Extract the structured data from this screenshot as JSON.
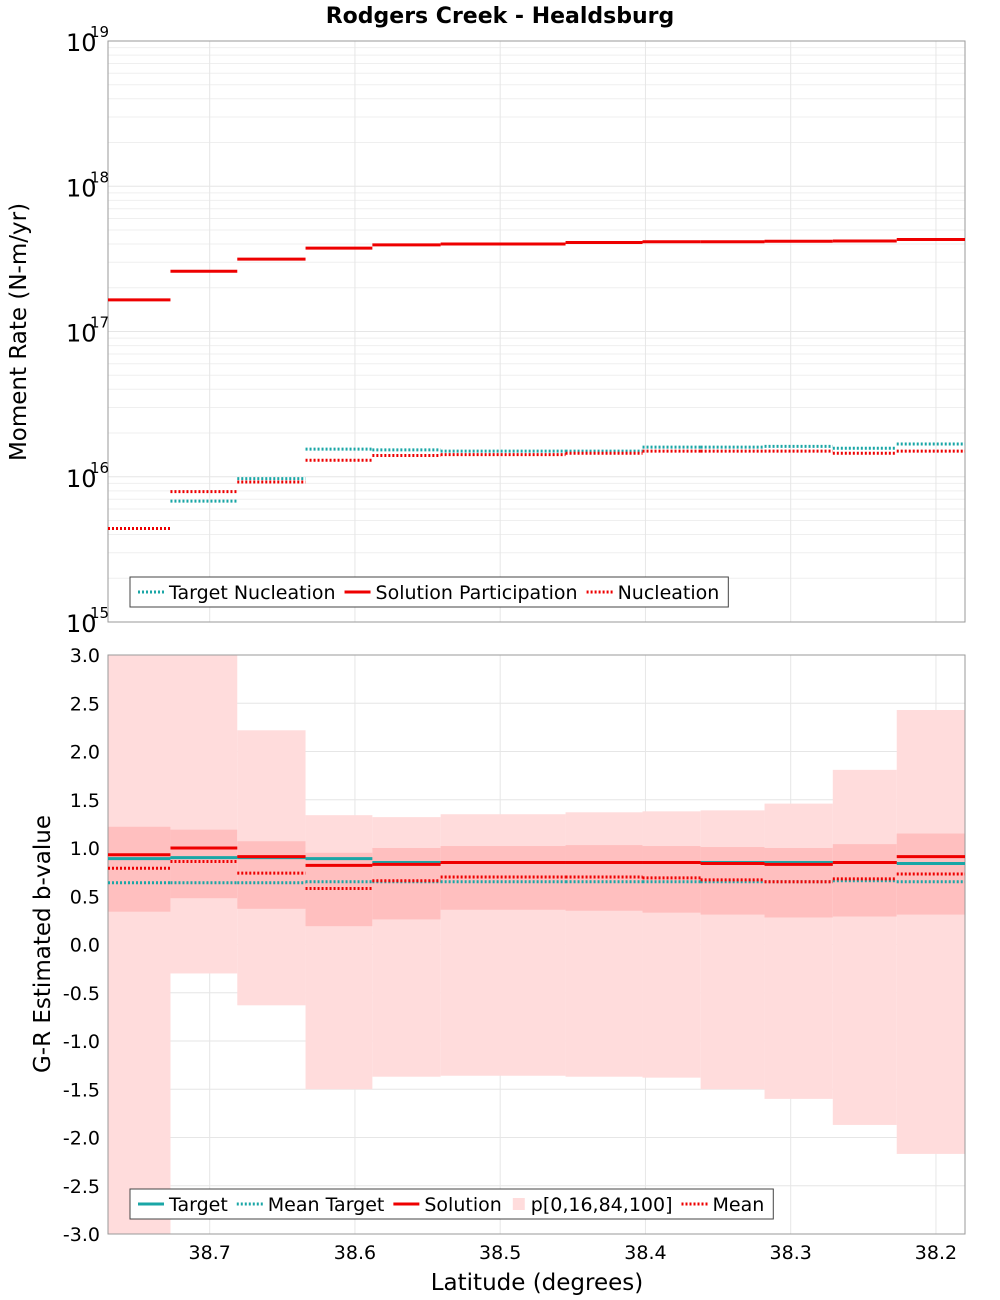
{
  "title": "Rodgers Creek - Healdsburg",
  "colors": {
    "target": "#1aa6a6",
    "solution": "#ee0000",
    "band_outer": "#ffdcdc",
    "band_inner": "#ffbfbf",
    "grid": "#e6e6e6",
    "axis": "#9a9a9a"
  },
  "chart_data": [
    {
      "type": "line",
      "panel": "top",
      "xlabel": "",
      "ylabel": "Moment Rate (N-m/yr)",
      "yscale": "log",
      "ylim": [
        1000000000000000.0,
        1e+19
      ],
      "xlim": [
        38.77,
        38.18
      ],
      "x_reversed": true,
      "grid": true,
      "legend_position": "bottom-left",
      "y_tick_labels": [
        {
          "base": "10",
          "exp": "15"
        },
        {
          "base": "10",
          "exp": "16"
        },
        {
          "base": "10",
          "exp": "17"
        },
        {
          "base": "10",
          "exp": "18"
        },
        {
          "base": "10",
          "exp": "19"
        }
      ],
      "x_edges": [
        38.77,
        38.727,
        38.681,
        38.634,
        38.588,
        38.541,
        38.455,
        38.402,
        38.362,
        38.318,
        38.271,
        38.227,
        38.18
      ],
      "series": [
        {
          "name": "Target Nucleation",
          "style": "dotted",
          "color": "#1aa6a6",
          "values": [
            4400000000000000.0,
            6800000000000000.0,
            9700000000000000.0,
            1.55e+16,
            1.53e+16,
            1.5e+16,
            1.5e+16,
            1.6e+16,
            1.6e+16,
            1.62e+16,
            1.57e+16,
            1.68e+16,
            1.68e+16
          ]
        },
        {
          "name": "Solution Participation",
          "style": "solid",
          "color": "#ee0000",
          "values": [
            1.65e+17,
            2.6e+17,
            3.15e+17,
            3.75e+17,
            3.95e+17,
            4e+17,
            4.1e+17,
            4.15e+17,
            4.15e+17,
            4.18e+17,
            4.2e+17,
            4.3e+17,
            4.3e+17
          ]
        },
        {
          "name": "Nucleation",
          "style": "dotted",
          "color": "#ee0000",
          "values": [
            4400000000000000.0,
            7900000000000000.0,
            9200000000000000.0,
            1.3e+16,
            1.4e+16,
            1.42e+16,
            1.45e+16,
            1.5e+16,
            1.5e+16,
            1.5e+16,
            1.45e+16,
            1.5e+16,
            1.5e+16
          ]
        }
      ],
      "legend": [
        "Target Nucleation",
        "Solution Participation",
        "Nucleation"
      ]
    },
    {
      "type": "line",
      "panel": "bottom",
      "xlabel": "Latitude (degrees)",
      "ylabel": "G-R Estimated b-value",
      "ylim": [
        -3.0,
        3.0
      ],
      "xlim": [
        38.77,
        38.18
      ],
      "x_reversed": true,
      "grid": true,
      "legend_position": "bottom-left",
      "y_ticks": [
        3.0,
        2.5,
        2.0,
        1.5,
        1.0,
        0.5,
        0.0,
        -0.5,
        -1.0,
        -1.5,
        -2.0,
        -2.5,
        -3.0
      ],
      "y_tick_labels": [
        "3.0",
        "2.5",
        "2.0",
        "1.5",
        "1.0",
        "0.5",
        "0.0",
        "-0.5",
        "-1.0",
        "-1.5",
        "-2.0",
        "-2.5",
        "-3.0"
      ],
      "x_ticks": [
        38.7,
        38.6,
        38.5,
        38.4,
        38.3,
        38.2
      ],
      "x_tick_labels": [
        "38.7",
        "38.6",
        "38.5",
        "38.4",
        "38.3",
        "38.2"
      ],
      "x_edges": [
        38.77,
        38.727,
        38.681,
        38.634,
        38.588,
        38.541,
        38.455,
        38.402,
        38.362,
        38.318,
        38.271,
        38.227,
        38.18
      ],
      "series": [
        {
          "name": "Target",
          "style": "solid",
          "color": "#1aa6a6",
          "values": [
            0.89,
            0.9,
            0.9,
            0.89,
            0.85,
            0.85,
            0.85,
            0.85,
            0.85,
            0.85,
            0.85,
            0.84,
            0.85
          ]
        },
        {
          "name": "Mean Target",
          "style": "dotted",
          "color": "#1aa6a6",
          "values": [
            0.64,
            0.64,
            0.64,
            0.65,
            0.65,
            0.65,
            0.65,
            0.65,
            0.65,
            0.65,
            0.66,
            0.65,
            0.65
          ]
        },
        {
          "name": "Solution",
          "style": "solid",
          "color": "#ee0000",
          "values": [
            0.93,
            1.0,
            0.91,
            0.82,
            0.83,
            0.85,
            0.85,
            0.85,
            0.84,
            0.83,
            0.85,
            0.91,
            0.87
          ]
        },
        {
          "name": "Mean",
          "style": "dotted",
          "color": "#ee0000",
          "values": [
            0.79,
            0.86,
            0.74,
            0.58,
            0.66,
            0.7,
            0.7,
            0.69,
            0.67,
            0.65,
            0.68,
            0.73,
            0.64
          ]
        }
      ],
      "band": {
        "name": "p[0,16,84,100]",
        "p0": [
          -3.0,
          -0.3,
          -0.63,
          -1.5,
          -1.37,
          -1.36,
          -1.37,
          -1.38,
          -1.5,
          -1.6,
          -1.87,
          -2.17,
          -2.17
        ],
        "p16": [
          0.34,
          0.48,
          0.37,
          0.19,
          0.26,
          0.36,
          0.35,
          0.33,
          0.31,
          0.28,
          0.29,
          0.31,
          0.24
        ],
        "p84": [
          1.22,
          1.19,
          1.07,
          0.95,
          1.0,
          1.02,
          1.03,
          1.02,
          1.01,
          1.0,
          1.04,
          1.15,
          1.1
        ],
        "p100": [
          3.0,
          3.0,
          2.22,
          1.34,
          1.32,
          1.35,
          1.37,
          1.38,
          1.39,
          1.46,
          1.81,
          2.43,
          2.4
        ]
      },
      "legend": [
        "Target",
        "Mean Target",
        "Solution",
        "p[0,16,84,100]",
        "Mean"
      ]
    }
  ]
}
